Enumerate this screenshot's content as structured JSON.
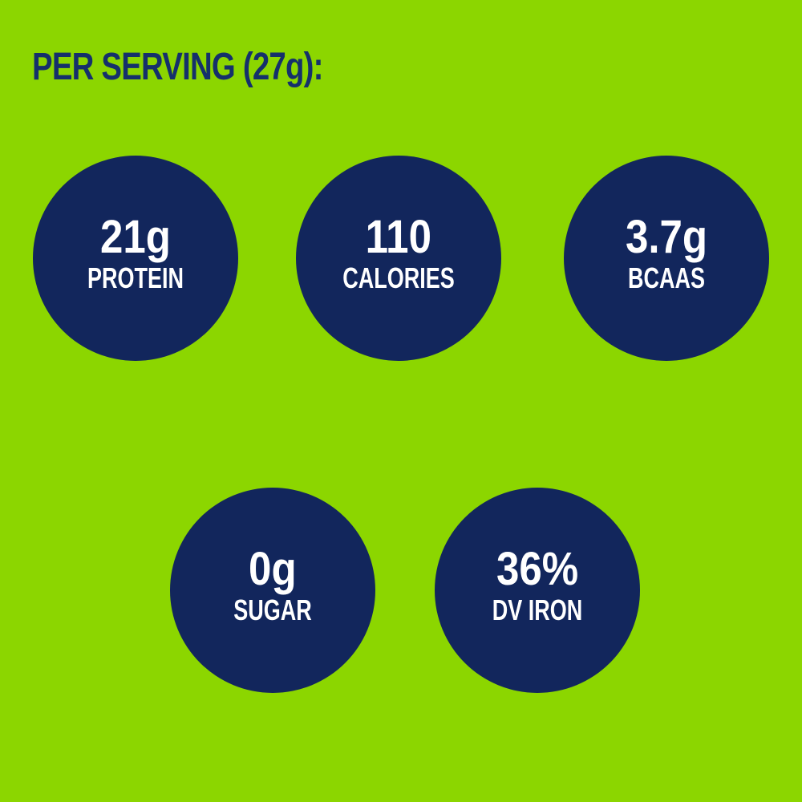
{
  "infographic": {
    "heading": "PER SERVING (27g):",
    "colors": {
      "background": "#8CD600",
      "heading_text": "#15306B",
      "circle_fill": "#12265C",
      "circle_text": "#FFFFFF"
    },
    "stats": [
      {
        "value": "21g",
        "label": "PROTEIN"
      },
      {
        "value": "110",
        "label": "CALORIES"
      },
      {
        "value": "3.7g",
        "label": "BCAAS"
      },
      {
        "value": "0g",
        "label": "SUGAR"
      },
      {
        "value": "36%",
        "label": "DV IRON"
      }
    ]
  }
}
